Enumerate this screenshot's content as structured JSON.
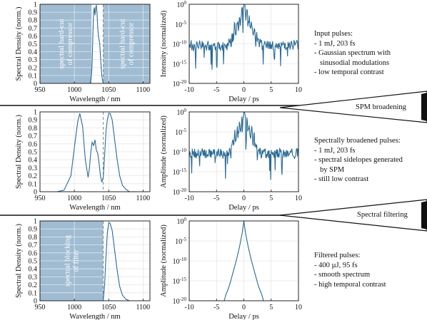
{
  "colors": {
    "line": "#2a6a96",
    "fill": "#9fbcd3",
    "dash": "#888888",
    "grid": "#e6e6e6"
  },
  "notes": [
    {
      "title": "Input pulses:",
      "items": [
        "- 1 mJ, 203 fs",
        "- Gaussian spectrum with",
        "  sinusodial modulations",
        "- low temporal contrast"
      ]
    },
    {
      "title": "Spectrally broadened pulses:",
      "items": [
        "- 1 mJ, 203 fs",
        "- spectral sidelopes generated",
        "  by SPM",
        "- still low contrast"
      ]
    },
    {
      "title": "Filtered pulses:",
      "items": [
        "- 400 µJ, 95 fs",
        "- smooth spectrum",
        "- high temporal contrast"
      ]
    }
  ],
  "arrows": [
    "SPM broadening",
    "Spectral filtering"
  ],
  "chart_data": [
    {
      "type": "line",
      "panel": "spectrum-1",
      "xlabel": "Wavelength / nm",
      "ylabel": "Spectral Density (norm.)",
      "xlim": [
        950,
        1110
      ],
      "ylim": [
        0,
        1
      ],
      "xticks": [
        "950",
        "1000",
        "1050",
        "1100"
      ],
      "yticks": [
        "0",
        "0.1",
        "0.2",
        "0.3",
        "0.4",
        "0.5",
        "0.6",
        "0.7",
        "0.8",
        "0.9",
        "1"
      ],
      "shaded_regions": [
        [
          950,
          1025
        ],
        [
          1042,
          1110
        ]
      ],
      "annotations": [
        "spectral hard-cut\nof compressor",
        "spectral hard-cut\nof compressor"
      ],
      "dashed_x": 1042,
      "x": [
        1023,
        1024,
        1025,
        1026,
        1027,
        1028,
        1029,
        1030,
        1031,
        1032,
        1033,
        1034,
        1035,
        1036,
        1037,
        1038,
        1039,
        1040,
        1041,
        1042,
        1043
      ],
      "y": [
        0,
        0.05,
        0.12,
        0.28,
        0.62,
        0.9,
        0.96,
        0.86,
        0.95,
        0.99,
        0.88,
        0.7,
        0.6,
        0.55,
        0.5,
        0.35,
        0.2,
        0.1,
        0.04,
        0,
        0
      ]
    },
    {
      "type": "line",
      "panel": "temporal-1",
      "yscale": "log",
      "xlabel": "Delay / ps",
      "ylabel": "Intensity (normalized)",
      "xlim": [
        -10,
        10
      ],
      "ylim_exp": [
        -20,
        0
      ],
      "xticks": [
        "-10",
        "-5",
        "0",
        "5",
        "10"
      ],
      "yticks": [
        "10^0",
        "10^-5",
        "10^-10",
        "10^-15",
        "10^-20"
      ],
      "profile": "modulated"
    },
    {
      "type": "line",
      "panel": "spectrum-2",
      "xlabel": "Wavelength / nm",
      "ylabel": "Spectral Density (norm.)",
      "xlim": [
        950,
        1110
      ],
      "ylim": [
        0,
        1
      ],
      "xticks": [
        "950",
        "1000",
        "1050",
        "1100"
      ],
      "yticks": [
        "0",
        "0.1",
        "0.2",
        "0.3",
        "0.4",
        "0.5",
        "0.6",
        "0.7",
        "0.8",
        "0.9",
        "1"
      ],
      "dashed_x": 1042,
      "x": [
        975,
        985,
        995,
        1000,
        1005,
        1008,
        1012,
        1016,
        1020,
        1022,
        1024,
        1026,
        1028,
        1030,
        1032,
        1034,
        1036,
        1038,
        1040,
        1042,
        1044,
        1046,
        1048,
        1050,
        1052,
        1055,
        1058,
        1062,
        1066,
        1070,
        1075,
        1080,
        1090
      ],
      "y": [
        0,
        0.02,
        0.2,
        0.55,
        0.88,
        0.98,
        0.82,
        0.4,
        0.18,
        0.3,
        0.5,
        0.62,
        0.58,
        0.65,
        0.52,
        0.48,
        0.35,
        0.2,
        0.12,
        0.18,
        0.45,
        0.75,
        0.9,
        0.98,
        0.98,
        0.9,
        0.7,
        0.42,
        0.2,
        0.08,
        0.03,
        0,
        0
      ]
    },
    {
      "type": "line",
      "panel": "temporal-2",
      "yscale": "log",
      "xlabel": "Delay / ps",
      "ylabel": "Amplitude (normalized)",
      "xlim": [
        -10,
        10
      ],
      "ylim_exp": [
        -20,
        0
      ],
      "xticks": [
        "-10",
        "-5",
        "0",
        "5",
        "10"
      ],
      "yticks": [
        "10^0",
        "10^-5",
        "10^-10",
        "10^-15",
        "10^-20"
      ],
      "profile": "modulated"
    },
    {
      "type": "line",
      "panel": "spectrum-3",
      "xlabel": "Wavelength / nm",
      "ylabel": "Spectral Density (norm.)",
      "xlim": [
        950,
        1110
      ],
      "ylim": [
        0,
        1
      ],
      "xticks": [
        "950",
        "1000",
        "1050",
        "1100"
      ],
      "yticks": [
        "0",
        "0.1",
        "0.2",
        "0.3",
        "0.4",
        "0.5",
        "0.6",
        "0.7",
        "0.8",
        "0.9",
        "1"
      ],
      "shaded_regions": [
        [
          950,
          1042
        ]
      ],
      "annotations": [
        "spectral blocking\nof filter"
      ],
      "dashed_x": 1042,
      "x": [
        1042,
        1044,
        1046,
        1048,
        1050,
        1052,
        1055,
        1058,
        1062,
        1066,
        1070,
        1075,
        1080
      ],
      "y": [
        0,
        0.2,
        0.55,
        0.85,
        0.98,
        0.97,
        0.88,
        0.68,
        0.4,
        0.18,
        0.07,
        0.02,
        0
      ]
    },
    {
      "type": "line",
      "panel": "temporal-3",
      "yscale": "log",
      "xlabel": "Delay / ps",
      "ylabel": "Amplitude (normalized)",
      "xlim": [
        -10,
        10
      ],
      "ylim_exp": [
        -20,
        0
      ],
      "xticks": [
        "-10",
        "-5",
        "0",
        "5",
        "10"
      ],
      "yticks": [
        "10^0",
        "10^-5",
        "10^-10",
        "10^-15",
        "10^-20"
      ],
      "profile": "triangular",
      "x": [
        -3.6,
        -3.3,
        -3.0,
        -2.6,
        -2.0,
        -1.4,
        -0.8,
        -0.3,
        0,
        0.3,
        0.8,
        1.4,
        2.0,
        2.6,
        3.0,
        3.3,
        3.6
      ],
      "y_exp": [
        -20,
        -18.5,
        -17.5,
        -16,
        -13,
        -10,
        -6.5,
        -3,
        0,
        -3,
        -6.5,
        -10,
        -13,
        -16,
        -17.5,
        -18.5,
        -20
      ]
    }
  ]
}
